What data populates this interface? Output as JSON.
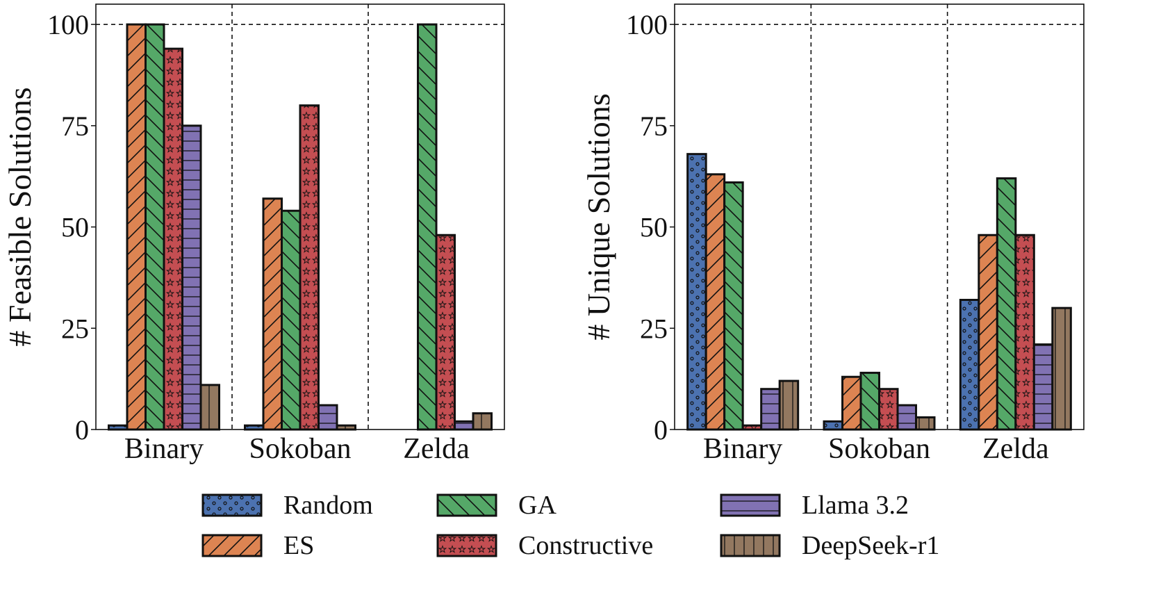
{
  "chart_data": [
    {
      "type": "bar",
      "ylabel": "# Feasible Solutions",
      "xlabel": "",
      "categories": [
        "Binary",
        "Sokoban",
        "Zelda"
      ],
      "ylim": [
        0,
        105
      ],
      "yticks": [
        0,
        25,
        50,
        75,
        100
      ],
      "reference_line": 100,
      "series": [
        {
          "name": "Random",
          "values": [
            1,
            1,
            0
          ]
        },
        {
          "name": "ES",
          "values": [
            100,
            57,
            0
          ]
        },
        {
          "name": "GA",
          "values": [
            100,
            54,
            100
          ]
        },
        {
          "name": "Constructive",
          "values": [
            94,
            80,
            48
          ]
        },
        {
          "name": "Llama 3.2",
          "values": [
            75,
            6,
            2
          ]
        },
        {
          "name": "DeepSeek-r1",
          "values": [
            11,
            1,
            4
          ]
        }
      ]
    },
    {
      "type": "bar",
      "ylabel": "# Unique Solutions",
      "xlabel": "",
      "categories": [
        "Binary",
        "Sokoban",
        "Zelda"
      ],
      "ylim": [
        0,
        105
      ],
      "yticks": [
        0,
        25,
        50,
        75,
        100
      ],
      "reference_line": 100,
      "series": [
        {
          "name": "Random",
          "values": [
            68,
            2,
            32
          ]
        },
        {
          "name": "ES",
          "values": [
            63,
            13,
            48
          ]
        },
        {
          "name": "GA",
          "values": [
            61,
            14,
            62
          ]
        },
        {
          "name": "Constructive",
          "values": [
            1,
            10,
            48
          ]
        },
        {
          "name": "Llama 3.2",
          "values": [
            10,
            6,
            21
          ]
        },
        {
          "name": "DeepSeek-r1",
          "values": [
            12,
            3,
            30
          ]
        }
      ]
    }
  ],
  "legend": {
    "entries": [
      {
        "name": "Random",
        "color": "#4c72b0",
        "pattern": "dots"
      },
      {
        "name": "ES",
        "color": "#dd8452",
        "pattern": "forward-diagonal"
      },
      {
        "name": "GA",
        "color": "#55a868",
        "pattern": "back-diagonal"
      },
      {
        "name": "Constructive",
        "color": "#c44e52",
        "pattern": "stars"
      },
      {
        "name": "Llama 3.2",
        "color": "#8172b3",
        "pattern": "horizontal"
      },
      {
        "name": "DeepSeek-r1",
        "color": "#937860",
        "pattern": "vertical"
      }
    ]
  }
}
